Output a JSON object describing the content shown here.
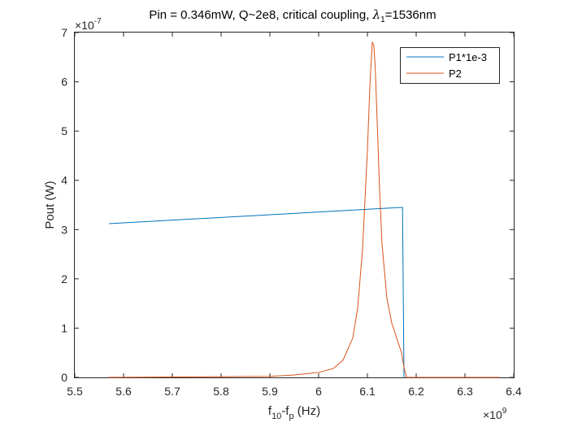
{
  "chart_data": {
    "type": "line",
    "title": "Pin = 0.346mW, Q~2e8, critical coupling, λ1=1536nm",
    "title_parts": {
      "prefix": "Pin = 0.346mW, Q~2e8, critical coupling, ",
      "lambda": "λ",
      "lambda_sub": "1",
      "suffix": "=1536nm"
    },
    "xlabel": "f10-fp (Hz)",
    "xlabel_parts": {
      "f1": "f",
      "sub1": "10",
      "mid": "-f",
      "sub2": "p",
      "end": " (Hz)"
    },
    "ylabel": "Pout (W)",
    "xlim": [
      5500000000.0,
      6400000000.0
    ],
    "ylim": [
      0,
      7e-07
    ],
    "x_exponent": {
      "base": "×10",
      "power": "9"
    },
    "y_exponent": {
      "base": "×10",
      "power": "-7"
    },
    "x_ticks": [
      5.5,
      5.6,
      5.7,
      5.8,
      5.9,
      6.0,
      6.1,
      6.2,
      6.3,
      6.4
    ],
    "x_tick_labels": [
      "5.5",
      "5.6",
      "5.7",
      "5.8",
      "5.9",
      "6",
      "6.1",
      "6.2",
      "6.3",
      "6.4"
    ],
    "y_ticks": [
      0,
      1,
      2,
      3,
      4,
      5,
      6,
      7
    ],
    "y_tick_labels": [
      "0",
      "1",
      "2",
      "3",
      "4",
      "5",
      "6",
      "7"
    ],
    "grid": false,
    "legend_position": "top-right",
    "series": [
      {
        "name": "P1*1e-3",
        "color": "#0072BD",
        "x": [
          5570000000.0,
          6170000000.0,
          6172000000.0,
          6175000000.0
        ],
        "y": [
          3.12e-07,
          3.45e-07,
          3.45e-07,
          0
        ]
      },
      {
        "name": "P2",
        "color": "#D95319",
        "x": [
          5570000000.0,
          5900000000.0,
          5950000000.0,
          6000000000.0,
          6030000000.0,
          6050000000.0,
          6070000000.0,
          6080000000.0,
          6090000000.0,
          6100000000.0,
          6105000000.0,
          6110000000.0,
          6113000000.0,
          6116000000.0,
          6120000000.0,
          6125000000.0,
          6130000000.0,
          6140000000.0,
          6150000000.0,
          6160000000.0,
          6170000000.0,
          6175000000.0,
          6180000000.0,
          6370000000.0
        ],
        "y": [
          0,
          2e-09,
          5e-09,
          1e-08,
          1.8e-08,
          3.5e-08,
          8e-08,
          1.4e-07,
          2.6e-07,
          4.6e-07,
          5.9e-07,
          6.8e-07,
          6.75e-07,
          6.3e-07,
          5.2e-07,
          3.8e-07,
          2.7e-07,
          1.6e-07,
          1.1e-07,
          8e-08,
          5e-08,
          2e-08,
          0,
          0
        ]
      }
    ]
  }
}
